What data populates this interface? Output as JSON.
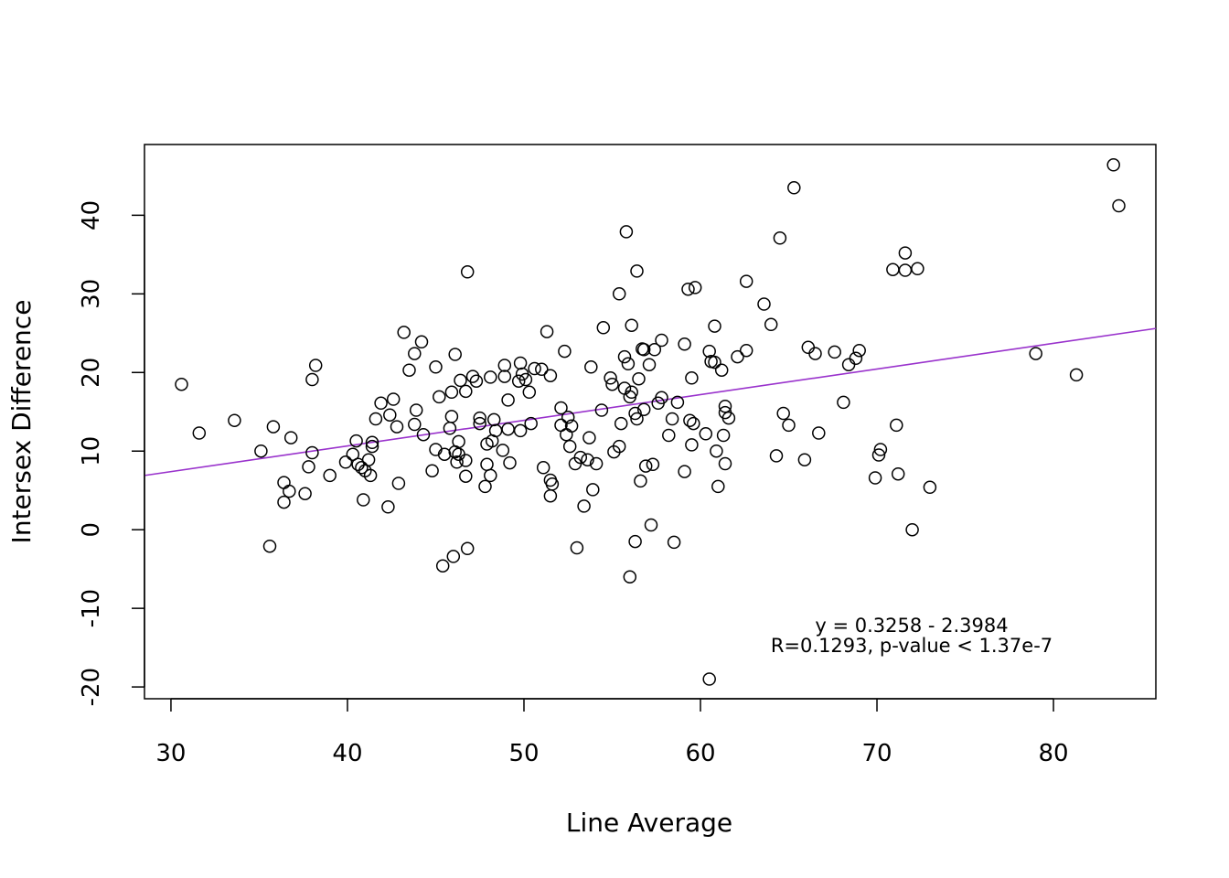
{
  "chart_data": {
    "type": "scatter",
    "xlabel": "Line Average",
    "ylabel": "Intersex Difference",
    "xlim": [
      28.5,
      85.8
    ],
    "ylim": [
      -21.5,
      49
    ],
    "x_ticks": [
      30,
      40,
      50,
      60,
      70,
      80
    ],
    "y_ticks": [
      -20,
      -10,
      0,
      10,
      20,
      30,
      40
    ],
    "grid": false,
    "annotations": [
      "y = 0.3258 - 2.3984",
      "R=0.1293, p-value < 1.37e-7"
    ],
    "regression_line": {
      "x": [
        28.5,
        85.8
      ],
      "y": [
        6.9,
        25.6
      ]
    },
    "colors": {
      "points": "#000000",
      "regression_line": "#9932cc",
      "frame": "#000000"
    },
    "points": [
      [
        30.6,
        18.5
      ],
      [
        31.6,
        12.3
      ],
      [
        33.6,
        13.9
      ],
      [
        35.1,
        10.0
      ],
      [
        35.6,
        -2.1
      ],
      [
        35.8,
        13.1
      ],
      [
        36.4,
        6.0
      ],
      [
        36.4,
        3.5
      ],
      [
        36.7,
        4.9
      ],
      [
        36.8,
        11.7
      ],
      [
        37.6,
        4.6
      ],
      [
        37.8,
        8.0
      ],
      [
        38.0,
        9.8
      ],
      [
        38.0,
        19.1
      ],
      [
        38.2,
        20.9
      ],
      [
        39.0,
        6.9
      ],
      [
        39.9,
        8.6
      ],
      [
        40.3,
        9.6
      ],
      [
        40.5,
        11.3
      ],
      [
        40.6,
        8.3
      ],
      [
        40.8,
        7.9
      ],
      [
        40.9,
        3.8
      ],
      [
        41.0,
        7.5
      ],
      [
        41.2,
        8.9
      ],
      [
        41.3,
        6.9
      ],
      [
        41.4,
        10.6
      ],
      [
        41.4,
        11.1
      ],
      [
        41.6,
        14.1
      ],
      [
        41.9,
        16.1
      ],
      [
        42.3,
        2.9
      ],
      [
        42.4,
        14.6
      ],
      [
        42.6,
        16.6
      ],
      [
        42.8,
        13.1
      ],
      [
        42.9,
        5.9
      ],
      [
        43.2,
        25.1
      ],
      [
        43.5,
        20.3
      ],
      [
        43.8,
        13.4
      ],
      [
        43.8,
        22.4
      ],
      [
        43.9,
        15.2
      ],
      [
        44.2,
        23.9
      ],
      [
        44.3,
        12.1
      ],
      [
        44.8,
        7.5
      ],
      [
        45.0,
        10.2
      ],
      [
        45.0,
        20.7
      ],
      [
        45.2,
        16.9
      ],
      [
        45.4,
        -4.6
      ],
      [
        45.5,
        9.6
      ],
      [
        45.8,
        12.9
      ],
      [
        45.9,
        17.5
      ],
      [
        45.9,
        14.4
      ],
      [
        46.0,
        -3.4
      ],
      [
        46.1,
        22.3
      ],
      [
        46.1,
        9.9
      ],
      [
        46.2,
        8.6
      ],
      [
        46.3,
        9.6
      ],
      [
        46.3,
        11.2
      ],
      [
        46.4,
        19.0
      ],
      [
        46.7,
        6.8
      ],
      [
        46.7,
        17.6
      ],
      [
        46.7,
        8.8
      ],
      [
        46.8,
        32.8
      ],
      [
        46.8,
        -2.4
      ],
      [
        47.1,
        19.5
      ],
      [
        47.3,
        18.9
      ],
      [
        47.5,
        14.2
      ],
      [
        47.5,
        13.5
      ],
      [
        47.8,
        5.5
      ],
      [
        47.9,
        8.3
      ],
      [
        47.9,
        10.9
      ],
      [
        48.1,
        6.9
      ],
      [
        48.1,
        19.4
      ],
      [
        48.2,
        11.3
      ],
      [
        48.3,
        14.0
      ],
      [
        48.4,
        12.6
      ],
      [
        48.8,
        10.1
      ],
      [
        48.9,
        19.5
      ],
      [
        48.9,
        20.9
      ],
      [
        49.1,
        16.5
      ],
      [
        49.1,
        12.8
      ],
      [
        49.2,
        8.5
      ],
      [
        49.7,
        18.9
      ],
      [
        49.8,
        12.6
      ],
      [
        49.8,
        21.2
      ],
      [
        49.9,
        19.8
      ],
      [
        50.1,
        19.1
      ],
      [
        50.3,
        17.5
      ],
      [
        50.4,
        13.5
      ],
      [
        50.6,
        20.5
      ],
      [
        51.0,
        20.4
      ],
      [
        51.1,
        7.9
      ],
      [
        51.3,
        25.2
      ],
      [
        51.5,
        19.6
      ],
      [
        51.5,
        4.3
      ],
      [
        51.5,
        6.3
      ],
      [
        51.6,
        5.8
      ],
      [
        52.1,
        13.3
      ],
      [
        52.1,
        15.5
      ],
      [
        52.3,
        22.7
      ],
      [
        52.4,
        12.1
      ],
      [
        52.5,
        14.3
      ],
      [
        52.6,
        10.6
      ],
      [
        52.7,
        13.2
      ],
      [
        52.9,
        8.4
      ],
      [
        53.0,
        -2.3
      ],
      [
        53.2,
        9.2
      ],
      [
        53.4,
        3.0
      ],
      [
        53.6,
        8.9
      ],
      [
        53.7,
        11.7
      ],
      [
        53.8,
        20.7
      ],
      [
        53.9,
        5.1
      ],
      [
        54.1,
        8.4
      ],
      [
        54.4,
        15.2
      ],
      [
        54.5,
        25.7
      ],
      [
        54.9,
        19.3
      ],
      [
        55.0,
        18.5
      ],
      [
        55.1,
        9.9
      ],
      [
        55.4,
        10.6
      ],
      [
        55.4,
        30.0
      ],
      [
        55.5,
        13.5
      ],
      [
        55.7,
        22.0
      ],
      [
        55.7,
        18.0
      ],
      [
        55.8,
        37.9
      ],
      [
        55.9,
        21.1
      ],
      [
        56.0,
        -6.0
      ],
      [
        56.0,
        16.9
      ],
      [
        56.1,
        26.0
      ],
      [
        56.1,
        17.5
      ],
      [
        56.3,
        -1.5
      ],
      [
        56.3,
        14.8
      ],
      [
        56.4,
        14.1
      ],
      [
        56.4,
        32.9
      ],
      [
        56.5,
        19.2
      ],
      [
        56.6,
        6.2
      ],
      [
        56.7,
        23.0
      ],
      [
        56.8,
        22.9
      ],
      [
        56.8,
        15.3
      ],
      [
        56.9,
        8.1
      ],
      [
        57.1,
        21.0
      ],
      [
        57.2,
        0.6
      ],
      [
        57.3,
        8.3
      ],
      [
        57.4,
        22.9
      ],
      [
        57.6,
        16.1
      ],
      [
        57.8,
        24.1
      ],
      [
        57.8,
        16.8
      ],
      [
        58.2,
        12.0
      ],
      [
        58.4,
        14.1
      ],
      [
        58.5,
        -1.6
      ],
      [
        58.7,
        16.2
      ],
      [
        59.1,
        7.4
      ],
      [
        59.1,
        23.6
      ],
      [
        59.3,
        30.6
      ],
      [
        59.4,
        13.9
      ],
      [
        59.5,
        19.3
      ],
      [
        59.5,
        10.8
      ],
      [
        59.6,
        13.5
      ],
      [
        59.7,
        30.8
      ],
      [
        60.3,
        12.2
      ],
      [
        60.5,
        -19.0
      ],
      [
        60.5,
        22.7
      ],
      [
        60.6,
        21.4
      ],
      [
        60.8,
        25.9
      ],
      [
        60.8,
        21.3
      ],
      [
        60.9,
        10.0
      ],
      [
        61.0,
        5.5
      ],
      [
        61.2,
        20.3
      ],
      [
        61.3,
        12.0
      ],
      [
        61.4,
        15.7
      ],
      [
        61.4,
        14.9
      ],
      [
        61.4,
        8.4
      ],
      [
        61.6,
        14.2
      ],
      [
        62.1,
        22.0
      ],
      [
        62.6,
        22.8
      ],
      [
        62.6,
        31.6
      ],
      [
        63.6,
        28.7
      ],
      [
        64.0,
        26.1
      ],
      [
        64.3,
        9.4
      ],
      [
        64.5,
        37.1
      ],
      [
        64.7,
        14.8
      ],
      [
        65.0,
        13.3
      ],
      [
        65.3,
        43.5
      ],
      [
        65.9,
        8.9
      ],
      [
        66.1,
        23.2
      ],
      [
        66.5,
        22.4
      ],
      [
        66.7,
        12.3
      ],
      [
        67.6,
        22.6
      ],
      [
        68.1,
        16.2
      ],
      [
        68.4,
        21.0
      ],
      [
        68.8,
        21.8
      ],
      [
        69.0,
        22.8
      ],
      [
        69.9,
        6.6
      ],
      [
        70.1,
        9.5
      ],
      [
        70.2,
        10.2
      ],
      [
        70.9,
        33.1
      ],
      [
        71.1,
        13.3
      ],
      [
        71.2,
        7.1
      ],
      [
        71.6,
        35.2
      ],
      [
        71.6,
        33.0
      ],
      [
        72.0,
        0.0
      ],
      [
        72.3,
        33.2
      ],
      [
        73.0,
        5.4
      ],
      [
        79.0,
        22.4
      ],
      [
        81.3,
        19.7
      ],
      [
        83.4,
        46.4
      ],
      [
        83.7,
        41.2
      ]
    ]
  }
}
